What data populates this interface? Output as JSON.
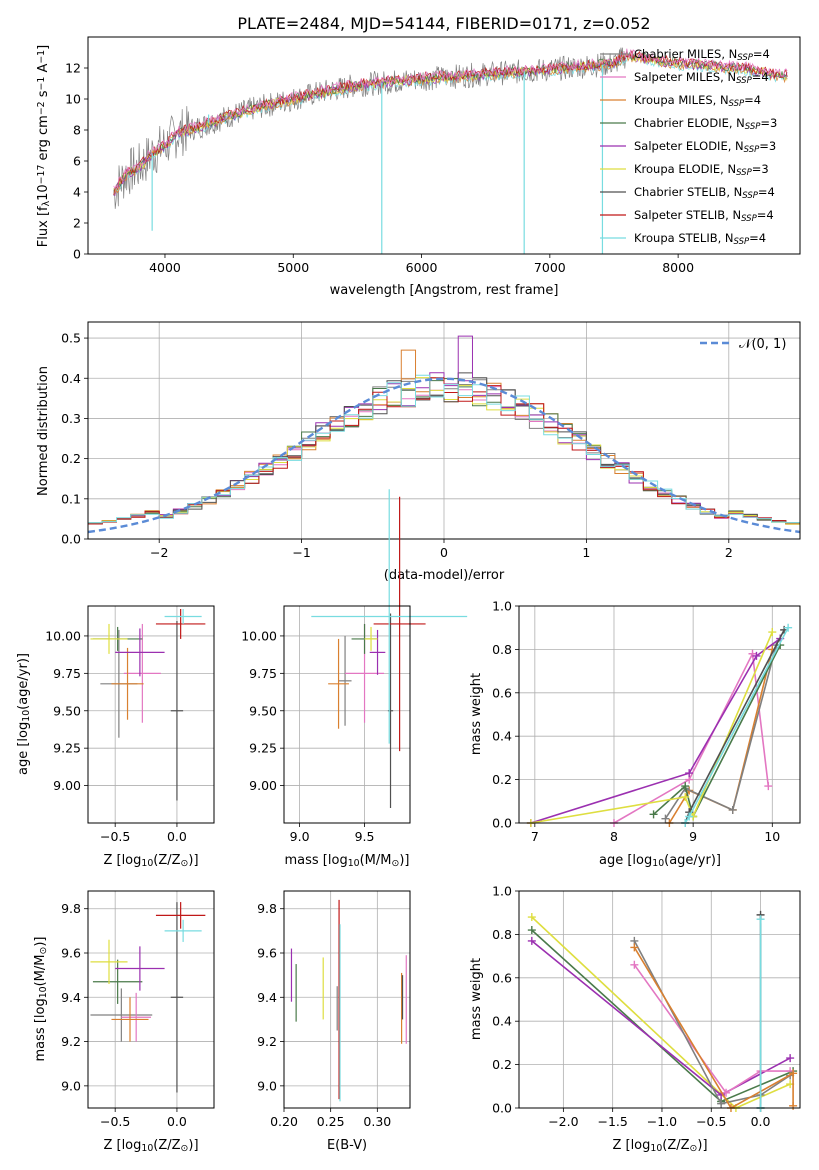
{
  "title": "PLATE=2484, MJD=54144, FIBERID=0171, z=0.052",
  "colors": [
    "#808080",
    "#e377c2",
    "#d98030",
    "#4a7a4a",
    "#9b30b0",
    "#dede40",
    "#505050",
    "#c01818",
    "#78dce0"
  ],
  "legend": [
    {
      "text": "Chabrier MILES, N",
      "sub": "SSP",
      "tail": "=4"
    },
    {
      "text": "Salpeter MILES, N",
      "sub": "SSP",
      "tail": "=4"
    },
    {
      "text": "Kroupa MILES, N",
      "sub": "SSP",
      "tail": "=4"
    },
    {
      "text": "Chabrier ELODIE, N",
      "sub": "SSP",
      "tail": "=3"
    },
    {
      "text": "Salpeter ELODIE, N",
      "sub": "SSP",
      "tail": "=3"
    },
    {
      "text": "Kroupa ELODIE, N",
      "sub": "SSP",
      "tail": "=3"
    },
    {
      "text": "Chabrier STELIB, N",
      "sub": "SSP",
      "tail": "=4"
    },
    {
      "text": "Salpeter STELIB, N",
      "sub": "SSP",
      "tail": "=4"
    },
    {
      "text": "Kroupa STELIB, N",
      "sub": "SSP",
      "tail": "=4"
    }
  ],
  "chart_data": [
    {
      "type": "line",
      "xlabel": "wavelength [Angstrom, rest frame]",
      "ylabel": "Flux [f",
      "ylabel_sub": "λ",
      "ylabel_rest": "10",
      "ylabel_sup": "−17",
      "ylabel_rest2": " erg cm",
      "ylabel_sup2": "−2",
      "ylabel_rest3": " s",
      "ylabel_sup3": "−1",
      "ylabel_rest4": " A",
      "ylabel_sup4": "−1",
      "ylabel_end": "]",
      "xlim": [
        3400,
        8950
      ],
      "ylim": [
        0,
        14
      ],
      "xticks": [
        "4000",
        "5000",
        "6000",
        "7000",
        "8000"
      ],
      "yticks": [
        "0",
        "2",
        "4",
        "6",
        "8",
        "10",
        "12"
      ],
      "spectrum": [
        [
          3600,
          4.0
        ],
        [
          3700,
          5.2
        ],
        [
          3800,
          5.6
        ],
        [
          3900,
          6.5
        ],
        [
          4000,
          7.0
        ],
        [
          4100,
          7.8
        ],
        [
          4300,
          8.3
        ],
        [
          4500,
          8.9
        ],
        [
          4700,
          9.4
        ],
        [
          5000,
          10.0
        ],
        [
          5200,
          10.4
        ],
        [
          5500,
          10.9
        ],
        [
          6000,
          11.3
        ],
        [
          6500,
          11.6
        ],
        [
          7000,
          11.9
        ],
        [
          7500,
          12.3
        ],
        [
          7600,
          12.8
        ],
        [
          8000,
          12.3
        ],
        [
          8500,
          12.0
        ],
        [
          8800,
          11.5
        ]
      ],
      "dips": [
        [
          3900,
          1.5
        ],
        [
          4340,
          9.0
        ],
        [
          5690,
          0
        ],
        [
          6800,
          0
        ],
        [
          7410,
          0
        ]
      ]
    },
    {
      "type": "line",
      "xlabel": "(data-model)/error",
      "ylabel": "Normed distribution",
      "xlim": [
        -2.5,
        2.5
      ],
      "ylim": [
        0,
        0.54
      ],
      "xticks": [
        "−2",
        "−1",
        "0",
        "1",
        "2"
      ],
      "yticks": [
        "0.0",
        "0.1",
        "0.2",
        "0.3",
        "0.4",
        "0.5"
      ],
      "legend_label": "𝒩(0, 1)",
      "normal": {
        "mean": 0,
        "sd": 1
      }
    },
    {
      "type": "scatter",
      "xlabel": "Z [log",
      "xlabel_sub": "10",
      "xlabel_rest": "(Z/Z",
      "xlabel_sub2": "⊙",
      "xlabel_end": ")]",
      "ylabel": "age  [log",
      "ylabel_sub": "10",
      "ylabel_end": "(age/yr)]",
      "xlim": [
        -0.72,
        0.3
      ],
      "ylim": [
        8.75,
        10.2
      ],
      "xticks": [
        "−0.5",
        "0.0"
      ],
      "yticks": [
        "9.00",
        "9.25",
        "9.50",
        "9.75",
        "10.00"
      ],
      "points": [
        {
          "x": -0.47,
          "xerr": 0.15,
          "y": 9.68,
          "yerr": 0.36,
          "c": 0
        },
        {
          "x": -0.28,
          "xerr": 0.15,
          "y": 9.75,
          "yerr": 0.33,
          "c": 1
        },
        {
          "x": -0.4,
          "xerr": 0.13,
          "y": 9.68,
          "yerr": 0.24,
          "c": 2
        },
        {
          "x": -0.48,
          "xerr": 0.2,
          "y": 9.98,
          "yerr": 0.08,
          "c": 3
        },
        {
          "x": -0.3,
          "xerr": 0.2,
          "y": 9.89,
          "yerr": 0.16,
          "c": 4
        },
        {
          "x": -0.55,
          "xerr": 0.15,
          "y": 9.98,
          "yerr": 0.1,
          "c": 5
        },
        {
          "x": 0.0,
          "xerr": 0.05,
          "y": 9.5,
          "yerr": 0.6,
          "c": 6
        },
        {
          "x": 0.03,
          "xerr": 0.2,
          "y": 10.08,
          "yerr": 0.1,
          "c": 7
        },
        {
          "x": 0.05,
          "xerr": 0.15,
          "y": 10.13,
          "yerr": 0.05,
          "c": 8
        }
      ]
    },
    {
      "type": "scatter",
      "xlabel": "mass [log",
      "xlabel_sub": "10",
      "xlabel_end": "(M/M",
      "xlabel_sub2": "⊙",
      "xlabel_end2": ")]",
      "xlim": [
        8.88,
        9.85
      ],
      "ylim": [
        8.75,
        10.2
      ],
      "xticks": [
        "9.0",
        "9.5"
      ],
      "yticks": [
        "9.00",
        "9.25",
        "9.50",
        "9.75",
        "10.00"
      ],
      "points": [
        {
          "x": 9.35,
          "xerr": 0.05,
          "y": 9.7,
          "yerr": 0.3,
          "c": 0
        },
        {
          "x": 9.5,
          "xerr": 0.15,
          "y": 9.75,
          "yerr": 0.33,
          "c": 1
        },
        {
          "x": 9.3,
          "xerr": 0.08,
          "y": 9.68,
          "yerr": 0.3,
          "c": 2
        },
        {
          "x": 9.5,
          "xerr": 0.1,
          "y": 9.98,
          "yerr": 0.1,
          "c": 3
        },
        {
          "x": 9.6,
          "xerr": 0.06,
          "y": 9.89,
          "yerr": 0.15,
          "c": 4
        },
        {
          "x": 9.55,
          "xerr": 0.05,
          "y": 9.98,
          "yerr": 0.08,
          "c": 5
        },
        {
          "x": 9.7,
          "xerr": 0.02,
          "y": 9.5,
          "yerr": 0.65,
          "c": 6
        },
        {
          "x": 9.77,
          "xerr": 0.2,
          "y": 10.08,
          "yerr": 0.85,
          "c": 7
        },
        {
          "x": 9.69,
          "xerr": 0.6,
          "y": 10.13,
          "yerr": 0.85,
          "c": 8
        }
      ]
    },
    {
      "type": "line",
      "xlabel": "age  [log",
      "xlabel_sub": "10",
      "xlabel_end": "(age/yr)]",
      "ylabel": "mass weight",
      "xlim": [
        6.8,
        10.35
      ],
      "ylim": [
        0,
        1.0
      ],
      "xticks": [
        "7",
        "8",
        "9",
        "10"
      ],
      "yticks": [
        "0.0",
        "0.2",
        "0.4",
        "0.6",
        "0.8",
        "1.0"
      ],
      "series": [
        {
          "c": 1,
          "x": [
            8.0,
            8.95,
            9.75,
            9.95
          ],
          "y": [
            0.0,
            0.2,
            0.78,
            0.17
          ]
        },
        {
          "c": 2,
          "x": [
            8.7,
            8.95,
            9.5,
            10.0
          ],
          "y": [
            0.0,
            0.15,
            0.06,
            0.8
          ]
        },
        {
          "c": 0,
          "x": [
            8.65,
            8.9,
            9.5,
            10.05
          ],
          "y": [
            0.02,
            0.16,
            0.06,
            0.82
          ]
        },
        {
          "c": 4,
          "x": [
            6.95,
            8.95,
            9.8,
            10.1
          ],
          "y": [
            0.0,
            0.23,
            0.77,
            0.85
          ]
        },
        {
          "c": 3,
          "x": [
            8.5,
            8.9,
            9.0,
            10.1
          ],
          "y": [
            0.04,
            0.17,
            0.03,
            0.82
          ]
        },
        {
          "c": 5,
          "x": [
            6.95,
            8.9,
            9.0,
            10.0
          ],
          "y": [
            0.0,
            0.12,
            0.03,
            0.88
          ]
        },
        {
          "c": 6,
          "x": [
            8.9,
            8.95,
            10.15
          ],
          "y": [
            0.0,
            0.05,
            0.89
          ]
        },
        {
          "c": 8,
          "x": [
            8.9,
            8.95,
            10.2
          ],
          "y": [
            0.0,
            0.03,
            0.9
          ]
        }
      ]
    },
    {
      "type": "scatter",
      "xlabel": "Z [log",
      "xlabel_sub": "10",
      "xlabel_rest": "(Z/Z",
      "xlabel_sub2": "⊙",
      "xlabel_end": ")]",
      "ylabel": "mass [log",
      "ylabel_sub": "10",
      "ylabel_end": "(M/M",
      "ylabel_sub2": "⊙",
      "ylabel_end2": ")]",
      "xlim": [
        -0.72,
        0.3
      ],
      "ylim": [
        8.9,
        9.88
      ],
      "xticks": [
        "−0.5",
        "0.0"
      ],
      "yticks": [
        "9.0",
        "9.2",
        "9.4",
        "9.6",
        "9.8"
      ],
      "points": [
        {
          "x": -0.45,
          "xerr": 0.25,
          "y": 9.32,
          "yerr": 0.12,
          "c": 0
        },
        {
          "x": -0.33,
          "xerr": 0.12,
          "y": 9.31,
          "yerr": 0.11,
          "c": 1
        },
        {
          "x": -0.38,
          "xerr": 0.15,
          "y": 9.3,
          "yerr": 0.1,
          "c": 2
        },
        {
          "x": -0.48,
          "xerr": 0.2,
          "y": 9.47,
          "yerr": 0.1,
          "c": 3
        },
        {
          "x": -0.3,
          "xerr": 0.2,
          "y": 9.53,
          "yerr": 0.1,
          "c": 4
        },
        {
          "x": -0.55,
          "xerr": 0.15,
          "y": 9.56,
          "yerr": 0.1,
          "c": 5
        },
        {
          "x": 0.0,
          "xerr": 0.05,
          "y": 9.4,
          "yerr": 0.43,
          "c": 6
        },
        {
          "x": 0.03,
          "xerr": 0.2,
          "y": 9.77,
          "yerr": 0.06,
          "c": 7
        },
        {
          "x": 0.05,
          "xerr": 0.15,
          "y": 9.7,
          "yerr": 0.05,
          "c": 8
        }
      ]
    },
    {
      "type": "scatter",
      "xlabel": "E(B-V)",
      "xlim": [
        0.2,
        0.335
      ],
      "ylim": [
        8.9,
        9.88
      ],
      "xticks": [
        "0.20",
        "0.25",
        "0.30"
      ],
      "yticks": [
        "9.0",
        "9.2",
        "9.4",
        "9.6",
        "9.8"
      ],
      "points": [
        {
          "x": 0.208,
          "yerr": 0.12,
          "y": 9.5,
          "c": 4
        },
        {
          "x": 0.213,
          "yerr": 0.13,
          "y": 9.42,
          "c": 3
        },
        {
          "x": 0.242,
          "yerr": 0.14,
          "y": 9.44,
          "c": 5
        },
        {
          "x": 0.257,
          "yerr": 0.1,
          "y": 9.35,
          "c": 0
        },
        {
          "x": 0.259,
          "yerr": 0.45,
          "y": 9.39,
          "c": 7
        },
        {
          "x": 0.26,
          "yerr": 0.4,
          "y": 9.33,
          "c": 8
        },
        {
          "x": 0.326,
          "yerr": 0.16,
          "y": 9.35,
          "c": 2
        },
        {
          "x": 0.327,
          "yerr": 0.1,
          "y": 9.4,
          "c": 6
        },
        {
          "x": 0.331,
          "yerr": 0.2,
          "y": 9.39,
          "c": 1
        }
      ]
    },
    {
      "type": "line",
      "xlabel": "Z [log",
      "xlabel_sub": "10",
      "xlabel_rest": "(Z/Z",
      "xlabel_sub2": "⊙",
      "xlabel_end": ")]",
      "ylabel": "mass weight",
      "xlim": [
        -2.45,
        0.4
      ],
      "ylim": [
        0,
        1.0
      ],
      "xticks": [
        "−2.0",
        "−1.5",
        "−1.0",
        "−0.5",
        "0.0"
      ],
      "yticks": [
        "0.0",
        "0.2",
        "0.4",
        "0.6",
        "0.8",
        "1.0"
      ],
      "series": [
        {
          "c": 5,
          "x": [
            -2.32,
            -0.25,
            0.3
          ],
          "y": [
            0.88,
            0.0,
            0.11
          ]
        },
        {
          "c": 3,
          "x": [
            -2.32,
            -0.4,
            0.33
          ],
          "y": [
            0.82,
            0.03,
            0.17
          ]
        },
        {
          "c": 4,
          "x": [
            -2.32,
            -0.4,
            0.3
          ],
          "y": [
            0.77,
            0.06,
            0.23
          ]
        },
        {
          "c": 1,
          "x": [
            -1.28,
            -0.35,
            0.0,
            0.3
          ],
          "y": [
            0.66,
            0.07,
            0.17,
            0.17
          ]
        },
        {
          "c": 0,
          "x": [
            -1.28,
            -0.4,
            0.0,
            0.3
          ],
          "y": [
            0.77,
            0.02,
            0.06,
            0.15
          ]
        },
        {
          "c": 2,
          "x": [
            -1.28,
            -0.3,
            0.33,
            0.33
          ],
          "y": [
            0.74,
            0.0,
            0.16,
            0.01
          ]
        },
        {
          "c": 6,
          "x": [
            0.0,
            0.0
          ],
          "y": [
            0.0,
            0.89
          ]
        },
        {
          "c": 8,
          "x": [
            0.0,
            0.0
          ],
          "y": [
            0.0,
            0.87
          ]
        }
      ]
    }
  ]
}
